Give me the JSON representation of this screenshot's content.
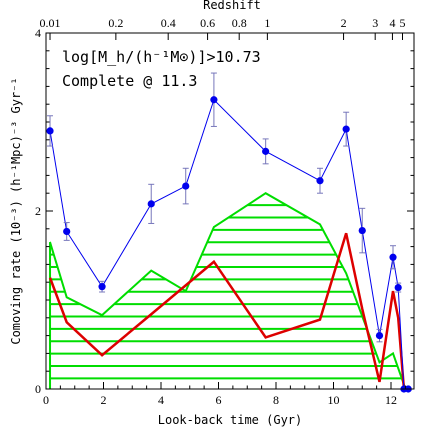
{
  "chart_data": {
    "type": "line",
    "xlabel": "Look-back time (Gyr)",
    "ylabel": "Comoving rate (10⁻³) (h⁻¹Mpc)⁻³ Gyr⁻¹",
    "top_axis_label": "Redshift",
    "xlim": [
      0,
      12.8
    ],
    "ylim": [
      0,
      4
    ],
    "x_ticks": [
      0,
      2,
      4,
      6,
      8,
      10,
      12
    ],
    "y_ticks": [
      0,
      2,
      4
    ],
    "redshift_ticks": [
      {
        "label": "0.01",
        "t": 0.14
      },
      {
        "label": "0.2",
        "t": 2.43
      },
      {
        "label": "0.4",
        "t": 4.25
      },
      {
        "label": "0.6",
        "t": 5.62
      },
      {
        "label": "0.8",
        "t": 6.72
      },
      {
        "label": "1",
        "t": 7.7
      },
      {
        "label": "2",
        "t": 10.35
      },
      {
        "label": "3",
        "t": 11.45
      },
      {
        "label": "4",
        "t": 12.05
      },
      {
        "label": "5",
        "t": 12.4
      }
    ],
    "annotation_lines": [
      "log[M_h/(h⁻¹M⊙)]>10.73",
      "Complete @ 11.3"
    ],
    "series": [
      {
        "color": "#0000ee",
        "style": "line+markers+errorbars",
        "points": [
          {
            "x": 0.14,
            "y": 2.9,
            "err": 0.17
          },
          {
            "x": 0.72,
            "y": 1.77,
            "err": 0.1
          },
          {
            "x": 1.95,
            "y": 1.15,
            "err": 0.06
          },
          {
            "x": 3.66,
            "y": 2.08,
            "err": 0.22
          },
          {
            "x": 4.86,
            "y": 2.28,
            "err": 0.2
          },
          {
            "x": 5.84,
            "y": 3.25,
            "err": 0.3
          },
          {
            "x": 7.64,
            "y": 2.67,
            "err": 0.14
          },
          {
            "x": 9.53,
            "y": 2.34,
            "err": 0.14
          },
          {
            "x": 10.44,
            "y": 2.92,
            "err": 0.19
          },
          {
            "x": 11.0,
            "y": 1.78,
            "err": 0.25
          },
          {
            "x": 11.6,
            "y": 0.6,
            "err": 0.07
          },
          {
            "x": 12.07,
            "y": 1.48,
            "err": 0.13
          },
          {
            "x": 12.25,
            "y": 1.14,
            "err": 0.05
          },
          {
            "x": 12.45,
            "y": 0.0,
            "err": 0.0
          },
          {
            "x": 12.6,
            "y": 0.0,
            "err": 0.0
          }
        ]
      },
      {
        "color": "#dd0000",
        "style": "line",
        "x": [
          0.14,
          0.72,
          1.95,
          3.66,
          5.84,
          7.64,
          9.53,
          10.44,
          11.0,
          11.6,
          12.07,
          12.25,
          12.45
        ],
        "y": [
          1.25,
          0.75,
          0.38,
          0.84,
          1.43,
          0.58,
          0.78,
          1.75,
          0.9,
          0.08,
          1.1,
          0.8,
          0.0
        ]
      },
      {
        "color": "#00dd00",
        "style": "hatched-band",
        "upper_x": [
          0.14,
          0.72,
          1.95,
          3.66,
          4.86,
          5.84,
          7.64,
          9.53,
          10.44,
          11.6,
          12.07,
          12.45
        ],
        "upper_y": [
          1.65,
          1.03,
          0.83,
          1.33,
          1.1,
          1.82,
          2.2,
          1.85,
          1.3,
          0.3,
          0.4,
          0.05
        ],
        "lower_x": [
          0.14,
          12.45
        ],
        "lower_y": [
          0.0,
          0.0
        ]
      }
    ]
  }
}
